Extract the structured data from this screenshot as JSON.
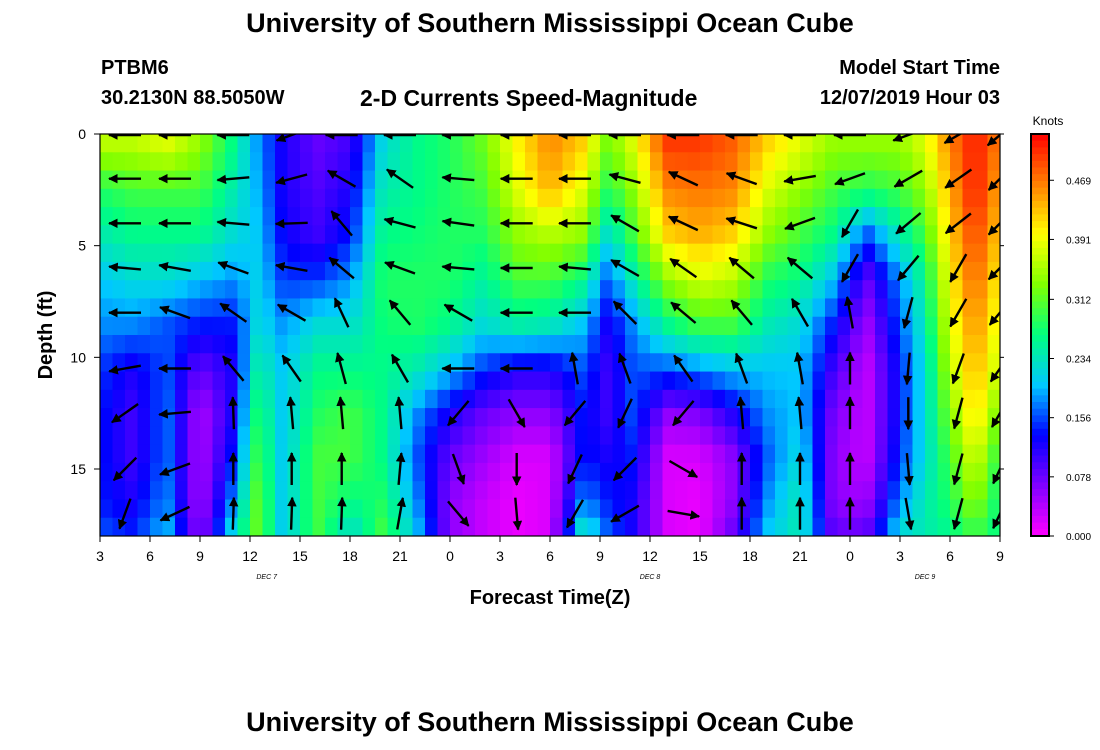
{
  "header": {
    "title": "University of Southern Mississippi Ocean Cube",
    "station": "PTBM6",
    "coords": "30.2130N 88.5050W",
    "subtitle": "2-D Currents Speed-Magnitude",
    "start_label": "Model Start Time",
    "start_time": "12/07/2019 Hour 03"
  },
  "footer": {
    "title": "University of Southern Mississippi Ocean Cube"
  },
  "chart_data": {
    "type": "heatmap",
    "title": "2-D Currents Speed-Magnitude",
    "xlabel": "Forecast Time(Z)",
    "ylabel": "Depth (ft)",
    "xlim": [
      3,
      57
    ],
    "ylim": [
      0,
      18
    ],
    "x_ticks": [
      {
        "value": 3,
        "label": "3"
      },
      {
        "value": 6,
        "label": "6"
      },
      {
        "value": 9,
        "label": "9"
      },
      {
        "value": 12,
        "label": "12"
      },
      {
        "value": 15,
        "label": "15"
      },
      {
        "value": 18,
        "label": "18"
      },
      {
        "value": 21,
        "label": "21"
      },
      {
        "value": 24,
        "label": "0"
      },
      {
        "value": 27,
        "label": "3"
      },
      {
        "value": 30,
        "label": "6"
      },
      {
        "value": 33,
        "label": "9"
      },
      {
        "value": 36,
        "label": "12"
      },
      {
        "value": 39,
        "label": "15"
      },
      {
        "value": 42,
        "label": "18"
      },
      {
        "value": 45,
        "label": "21"
      },
      {
        "value": 48,
        "label": "0"
      },
      {
        "value": 51,
        "label": "3"
      },
      {
        "value": 54,
        "label": "6"
      },
      {
        "value": 57,
        "label": "9"
      }
    ],
    "y_ticks": [
      0,
      5,
      10,
      15
    ],
    "date_labels": [
      {
        "value": 13,
        "label": "DEC 7"
      },
      {
        "value": 36,
        "label": "DEC 8"
      },
      {
        "value": 52.5,
        "label": "DEC 9"
      }
    ],
    "colorbar": {
      "label": "Knots",
      "ticks": [
        "0.469",
        "0.391",
        "0.312",
        "0.234",
        "0.156",
        "0.078",
        "0.000"
      ],
      "min": 0.0,
      "max": 0.53,
      "colors": [
        "#ff00ff",
        "#8000ff",
        "#0000ff",
        "#00c8ff",
        "#00ff80",
        "#80ff00",
        "#ffff00",
        "#ff8000",
        "#ff0000"
      ]
    },
    "depths": [
      0.5,
      2.5,
      4.5,
      6.5,
      8.5,
      10.5,
      12.5,
      14.5,
      16.5,
      17.8
    ],
    "speed_profiles": [
      {
        "t": 3,
        "v": [
          0.36,
          0.28,
          0.24,
          0.2,
          0.18,
          0.15,
          0.14,
          0.14,
          0.14,
          0.16
        ]
      },
      {
        "t": 5,
        "v": [
          0.36,
          0.3,
          0.26,
          0.22,
          0.18,
          0.12,
          0.1,
          0.1,
          0.12,
          0.14
        ]
      },
      {
        "t": 7,
        "v": [
          0.38,
          0.3,
          0.26,
          0.22,
          0.16,
          0.16,
          0.17,
          0.17,
          0.18,
          0.2
        ]
      },
      {
        "t": 9,
        "v": [
          0.34,
          0.3,
          0.26,
          0.2,
          0.14,
          0.08,
          0.04,
          0.04,
          0.04,
          0.05
        ]
      },
      {
        "t": 11,
        "v": [
          0.26,
          0.24,
          0.22,
          0.18,
          0.14,
          0.12,
          0.12,
          0.14,
          0.18,
          0.22
        ]
      },
      {
        "t": 12.5,
        "v": [
          0.18,
          0.19,
          0.2,
          0.21,
          0.22,
          0.25,
          0.28,
          0.3,
          0.32,
          0.32
        ]
      },
      {
        "t": 14,
        "v": [
          0.12,
          0.12,
          0.13,
          0.15,
          0.18,
          0.2,
          0.2,
          0.2,
          0.2,
          0.2
        ]
      },
      {
        "t": 16,
        "v": [
          0.08,
          0.09,
          0.1,
          0.15,
          0.22,
          0.26,
          0.28,
          0.3,
          0.3,
          0.3
        ]
      },
      {
        "t": 18,
        "v": [
          0.1,
          0.12,
          0.14,
          0.18,
          0.22,
          0.26,
          0.3,
          0.3,
          0.26,
          0.22
        ]
      },
      {
        "t": 20,
        "v": [
          0.22,
          0.24,
          0.26,
          0.28,
          0.27,
          0.26,
          0.26,
          0.26,
          0.28,
          0.3
        ]
      },
      {
        "t": 22,
        "v": [
          0.26,
          0.26,
          0.27,
          0.28,
          0.28,
          0.24,
          0.18,
          0.16,
          0.18,
          0.2
        ]
      },
      {
        "t": 24,
        "v": [
          0.28,
          0.28,
          0.28,
          0.28,
          0.26,
          0.2,
          0.12,
          0.08,
          0.06,
          0.06
        ]
      },
      {
        "t": 26,
        "v": [
          0.32,
          0.3,
          0.28,
          0.25,
          0.22,
          0.15,
          0.08,
          0.05,
          0.03,
          0.03
        ]
      },
      {
        "t": 28,
        "v": [
          0.4,
          0.38,
          0.34,
          0.3,
          0.25,
          0.12,
          0.06,
          0.02,
          0.01,
          0.01
        ]
      },
      {
        "t": 30,
        "v": [
          0.46,
          0.44,
          0.36,
          0.3,
          0.24,
          0.12,
          0.06,
          0.02,
          0.02,
          0.02
        ]
      },
      {
        "t": 32,
        "v": [
          0.42,
          0.38,
          0.34,
          0.26,
          0.2,
          0.16,
          0.14,
          0.14,
          0.18,
          0.24
        ]
      },
      {
        "t": 33.5,
        "v": [
          0.32,
          0.28,
          0.22,
          0.16,
          0.12,
          0.1,
          0.1,
          0.12,
          0.14,
          0.16
        ]
      },
      {
        "t": 35,
        "v": [
          0.38,
          0.34,
          0.3,
          0.24,
          0.18,
          0.16,
          0.16,
          0.14,
          0.12,
          0.12
        ]
      },
      {
        "t": 37,
        "v": [
          0.5,
          0.46,
          0.42,
          0.34,
          0.26,
          0.16,
          0.06,
          0.02,
          0.02,
          0.02
        ]
      },
      {
        "t": 39,
        "v": [
          0.5,
          0.47,
          0.44,
          0.38,
          0.3,
          0.18,
          0.07,
          0.02,
          0.01,
          0.01
        ]
      },
      {
        "t": 41,
        "v": [
          0.48,
          0.46,
          0.42,
          0.36,
          0.3,
          0.2,
          0.12,
          0.06,
          0.06,
          0.08
        ]
      },
      {
        "t": 43,
        "v": [
          0.42,
          0.38,
          0.34,
          0.28,
          0.24,
          0.2,
          0.18,
          0.16,
          0.18,
          0.2
        ]
      },
      {
        "t": 45,
        "v": [
          0.38,
          0.34,
          0.3,
          0.26,
          0.22,
          0.2,
          0.2,
          0.22,
          0.24,
          0.24
        ]
      },
      {
        "t": 47,
        "v": [
          0.34,
          0.3,
          0.26,
          0.2,
          0.14,
          0.1,
          0.07,
          0.06,
          0.06,
          0.08
        ]
      },
      {
        "t": 49,
        "v": [
          0.34,
          0.28,
          0.16,
          0.08,
          0.05,
          0.03,
          0.03,
          0.03,
          0.05,
          0.08
        ]
      },
      {
        "t": 51,
        "v": [
          0.34,
          0.3,
          0.24,
          0.18,
          0.16,
          0.14,
          0.14,
          0.15,
          0.18,
          0.22
        ]
      },
      {
        "t": 52.5,
        "v": [
          0.38,
          0.34,
          0.3,
          0.26,
          0.24,
          0.22,
          0.22,
          0.22,
          0.24,
          0.24
        ]
      },
      {
        "t": 54,
        "v": [
          0.46,
          0.44,
          0.42,
          0.4,
          0.38,
          0.36,
          0.33,
          0.3,
          0.28,
          0.26
        ]
      },
      {
        "t": 55.5,
        "v": [
          0.52,
          0.52,
          0.5,
          0.48,
          0.46,
          0.44,
          0.42,
          0.38,
          0.34,
          0.3
        ]
      },
      {
        "t": 57,
        "v": [
          0.46,
          0.44,
          0.42,
          0.4,
          0.38,
          0.36,
          0.32,
          0.28,
          0.26,
          0.26
        ]
      }
    ],
    "vector_times": [
      4.5,
      7.5,
      11,
      14.5,
      17.5,
      21,
      24.5,
      28,
      31.5,
      34.5,
      38,
      41.5,
      45,
      48,
      51.5,
      54.5,
      57
    ],
    "vector_depths": [
      0,
      2,
      4,
      6,
      8,
      10.5,
      12.5,
      15,
      17
    ],
    "vector_rows": [
      {
        "depth": 0,
        "directions_deg": [
          180,
          180,
          180,
          200,
          180,
          180,
          180,
          180,
          180,
          180,
          180,
          180,
          180,
          180,
          200,
          210,
          220
        ]
      },
      {
        "depth": 2,
        "directions_deg": [
          180,
          180,
          185,
          195,
          150,
          145,
          175,
          180,
          180,
          165,
          155,
          160,
          190,
          200,
          210,
          215,
          225
        ]
      },
      {
        "depth": 4,
        "directions_deg": [
          180,
          180,
          175,
          182,
          130,
          165,
          172,
          180,
          180,
          150,
          155,
          162,
          200,
          240,
          220,
          218,
          225
        ]
      },
      {
        "depth": 6,
        "directions_deg": [
          175,
          170,
          160,
          170,
          140,
          160,
          175,
          180,
          175,
          150,
          145,
          140,
          140,
          240,
          230,
          240,
          225
        ]
      },
      {
        "depth": 8,
        "directions_deg": [
          180,
          160,
          145,
          150,
          115,
          130,
          150,
          180,
          180,
          135,
          140,
          130,
          120,
          100,
          255,
          240,
          230
        ]
      },
      {
        "depth": 10.5,
        "directions_deg": [
          190,
          180,
          130,
          125,
          105,
          120,
          180,
          180,
          100,
          110,
          125,
          110,
          100,
          90,
          265,
          250,
          235
        ]
      },
      {
        "depth": 12.5,
        "directions_deg": [
          215,
          185,
          92,
          95,
          95,
          95,
          230,
          300,
          230,
          245,
          230,
          95,
          95,
          90,
          270,
          255,
          240
        ]
      },
      {
        "depth": 15,
        "directions_deg": [
          225,
          200,
          90,
          90,
          90,
          85,
          290,
          270,
          245,
          225,
          330,
          90,
          90,
          90,
          275,
          255,
          245
        ]
      },
      {
        "depth": 17,
        "directions_deg": [
          250,
          205,
          88,
          88,
          88,
          80,
          310,
          275,
          240,
          210,
          350,
          90,
          90,
          90,
          280,
          255,
          245
        ]
      }
    ]
  }
}
